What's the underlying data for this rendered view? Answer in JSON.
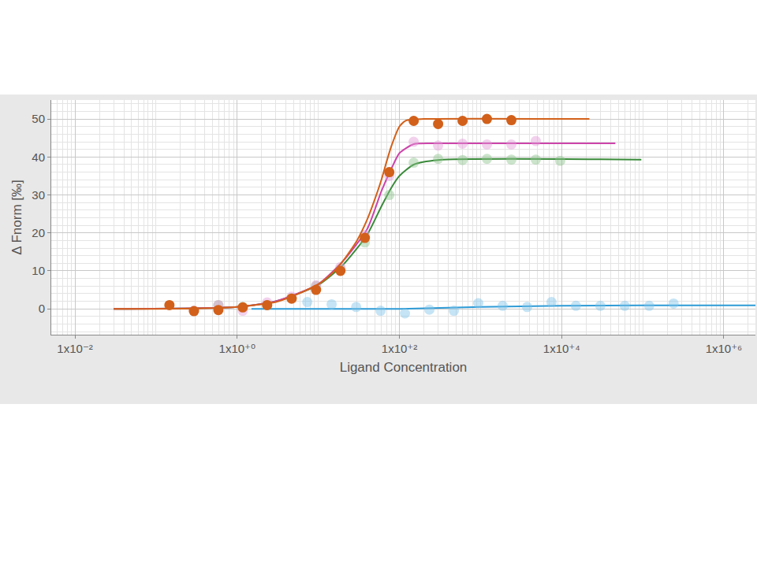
{
  "chart_data": {
    "type": "scatter",
    "x_label": "Ligand Concentration",
    "y_label": "Δ Fnorm [‰]",
    "log": "x",
    "grid": true,
    "xlim": [
      0.0051,
      2450000
    ],
    "xticks": [
      {
        "value": 0.01,
        "label": "1x10⁻²"
      },
      {
        "value": 1,
        "label": "1x10⁺⁰"
      },
      {
        "value": 100,
        "label": "1x10⁺²"
      },
      {
        "value": 10000,
        "label": "1x10⁺⁴"
      },
      {
        "value": 1000000,
        "label": "1x10⁺⁶"
      }
    ],
    "ylim": [
      -6.8,
      55
    ],
    "yticks": [
      0,
      10,
      20,
      30,
      40,
      50
    ],
    "series": [
      {
        "type": "line",
        "color": "#2e9bd6",
        "line_style": "solid",
        "x": [
          1.5,
          10,
          100,
          1000,
          10000,
          100000,
          2450000
        ],
        "values": [
          0,
          0,
          0,
          0.5,
          0.8,
          0.9,
          0.9
        ]
      },
      {
        "type": "scatter",
        "color": "#7fc4e8",
        "marker": "faded",
        "x": [
          7.32,
          14.6,
          29.3,
          58.6,
          117,
          234,
          469,
          938,
          1875,
          3750,
          7500,
          15000,
          30000,
          60000,
          120000,
          240000
        ],
        "values": [
          1.8,
          1.2,
          0.5,
          -0.5,
          -1.2,
          -0.2,
          -0.5,
          1.5,
          0.8,
          0.5,
          1.8,
          0.8,
          0.8,
          0.8,
          0.8,
          1.4
        ]
      },
      {
        "type": "line",
        "color": "#3a8a3a",
        "line_style": "solid",
        "x": [
          0.03,
          1,
          3,
          10,
          20,
          40,
          60,
          80,
          100,
          150,
          300,
          96000
        ],
        "values": [
          0,
          0.5,
          2,
          6.3,
          11.5,
          19.5,
          27,
          32,
          35,
          38,
          39.2,
          39.3
        ]
      },
      {
        "type": "scatter",
        "color": "#8cc48c",
        "marker": "faded",
        "x": [
          0.586,
          1.17,
          2.34,
          4.69,
          9.38,
          18.75,
          37.5,
          75,
          150,
          300,
          600,
          1200,
          2400,
          4800,
          9600
        ],
        "values": [
          1.0,
          0.5,
          1.0,
          2.8,
          6.0,
          10.5,
          17.5,
          30,
          38.5,
          39.5,
          39.2,
          39.5,
          39.3,
          39.3,
          39.0
        ]
      },
      {
        "type": "line",
        "color": "#cc44aa",
        "line_style": "solid",
        "x": [
          0.03,
          1,
          3,
          10,
          20,
          40,
          60,
          80,
          100,
          150,
          300,
          46000
        ],
        "values": [
          0,
          0.5,
          2,
          6.5,
          12.5,
          21,
          31,
          37,
          41,
          43.4,
          43.6,
          43.6
        ]
      },
      {
        "type": "scatter",
        "color": "#e39ad6",
        "marker": "faded",
        "x": [
          0.293,
          0.586,
          1.17,
          2.34,
          4.69,
          9.38,
          18.75,
          37.5,
          75,
          150,
          300,
          600,
          1200,
          2400,
          4800
        ],
        "values": [
          -0.5,
          1.0,
          -0.5,
          1.7,
          3.2,
          6.2,
          11,
          19.5,
          35,
          44,
          43,
          43.5,
          43.3,
          43.3,
          44.2
        ]
      },
      {
        "type": "line",
        "color": "#d2601a",
        "line_style": "solid",
        "x": [
          0.03,
          0.3,
          1,
          3,
          5,
          10,
          15,
          20,
          30,
          40,
          50,
          60,
          70,
          80,
          100,
          120,
          200,
          22000
        ],
        "values": [
          0,
          0.1,
          0.5,
          1.8,
          3.5,
          6.5,
          9.5,
          12.5,
          18,
          23.5,
          29,
          34,
          39,
          43,
          48,
          49.6,
          50,
          50
        ]
      },
      {
        "type": "scatter",
        "color": "#d2601a",
        "marker": "circle",
        "x": [
          0.146,
          0.293,
          0.586,
          1.17,
          2.34,
          4.69,
          9.38,
          18.75,
          37.5,
          75,
          150,
          300,
          600,
          1200,
          2400
        ],
        "values": [
          1.0,
          -0.6,
          -0.3,
          0.4,
          1.0,
          2.7,
          5.0,
          10.0,
          18.7,
          36.0,
          49.5,
          48.7,
          49.5,
          50.0,
          49.7
        ]
      }
    ]
  }
}
